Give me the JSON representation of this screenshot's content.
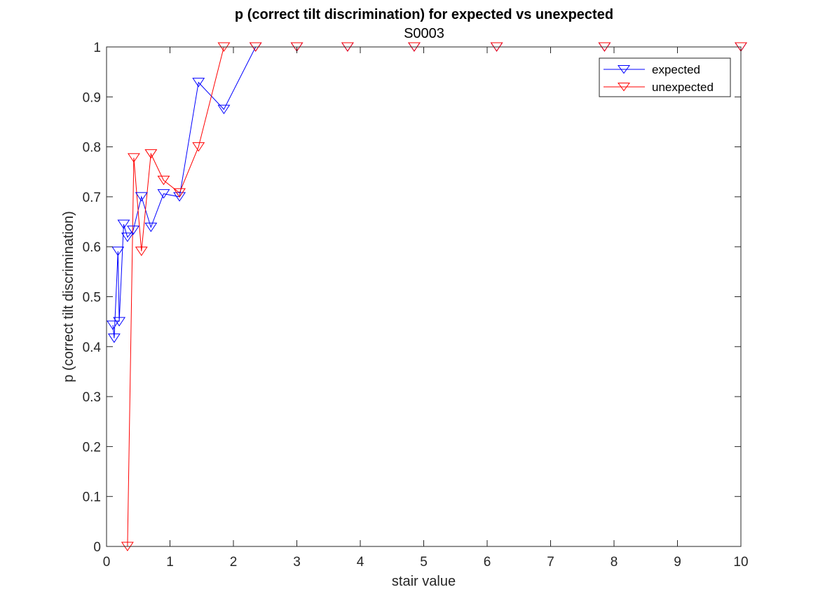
{
  "chart_data": {
    "type": "line",
    "title": "p (correct tilt discrimination) for expected vs unexpected",
    "subtitle": "S0003",
    "xlabel": "stair value",
    "ylabel": "p (correct tilt discrimination)",
    "xlim": [
      0,
      10
    ],
    "ylim": [
      0,
      1
    ],
    "x_ticks": [
      "0",
      "1",
      "2",
      "3",
      "4",
      "5",
      "6",
      "7",
      "8",
      "9",
      "10"
    ],
    "y_ticks": [
      "0",
      "0.1",
      "0.2",
      "0.3",
      "0.4",
      "0.5",
      "0.6",
      "0.7",
      "0.8",
      "0.9",
      "1"
    ],
    "grid": false,
    "legend_position": "top-right",
    "marker": "down-triangle",
    "series": [
      {
        "name": "expected",
        "color": "#0000ff",
        "x": [
          0.1,
          0.12,
          0.18,
          0.2,
          0.27,
          0.33,
          0.42,
          0.55,
          0.7,
          0.9,
          1.15,
          1.45,
          1.85,
          2.35,
          3.0,
          3.8,
          4.85,
          6.15,
          7.85,
          10.0
        ],
        "y": [
          0.443,
          0.417,
          0.591,
          0.45,
          0.645,
          0.619,
          0.633,
          0.7,
          0.639,
          0.706,
          0.7,
          0.929,
          0.875,
          1.0,
          1.0,
          1.0,
          1.0,
          1.0,
          1.0,
          1.0
        ]
      },
      {
        "name": "unexpected",
        "color": "#ff0000",
        "x": [
          0.33,
          0.43,
          0.55,
          0.7,
          0.9,
          1.15,
          1.45,
          1.85,
          2.35,
          3.0,
          3.8,
          4.85,
          6.15,
          7.85,
          10.0
        ],
        "y": [
          0.0,
          0.778,
          0.591,
          0.786,
          0.733,
          0.708,
          0.8,
          1.0,
          1.0,
          1.0,
          1.0,
          1.0,
          1.0,
          1.0,
          1.0
        ]
      }
    ]
  }
}
